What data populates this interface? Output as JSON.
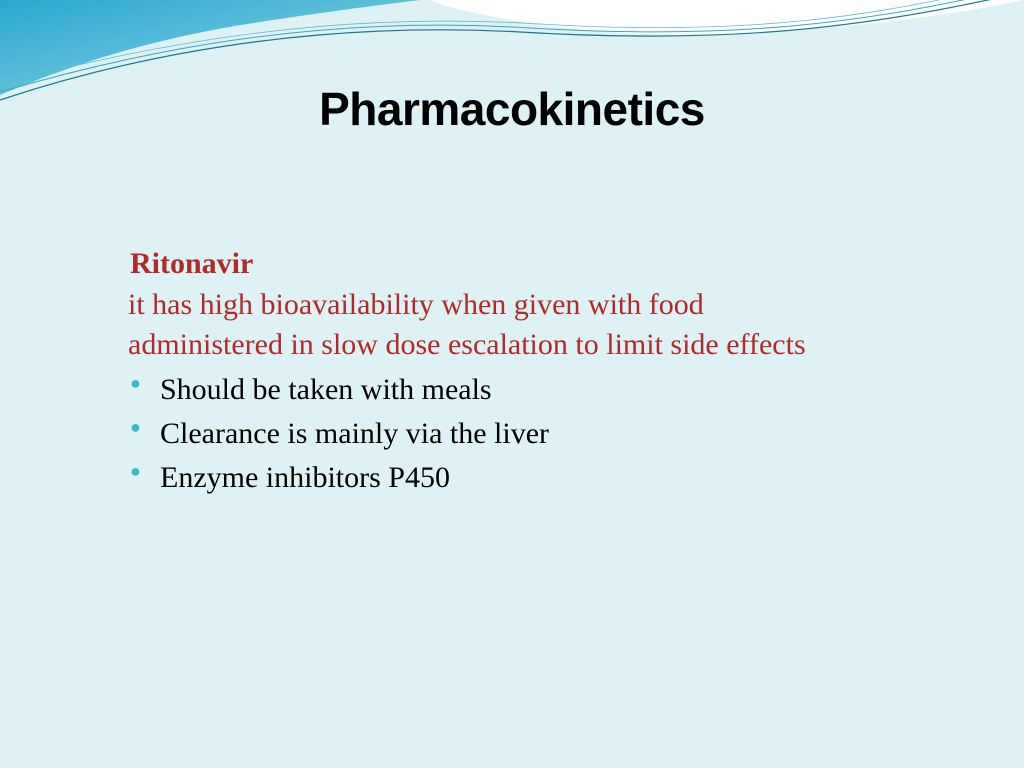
{
  "slide": {
    "background_color": "#def1f4",
    "title": "Pharmacokinetics",
    "title_color": "#000000",
    "title_fontsize": 46,
    "subheading": "Ritonavir",
    "subheading_color": "#b02a2a",
    "red_lines": [
      " it has high bioavailability when given with food",
      " administered in slow dose escalation to limit side effects"
    ],
    "bullet_items": [
      "Should be taken with meals",
      "Clearance is mainly via the liver",
      "Enzyme inhibitors P450"
    ],
    "bullet_color": "#000000",
    "bullet_marker_color": "#3bb9c4",
    "body_fontsize": 30,
    "wave": {
      "gradient_start": "#2aa6cf",
      "gradient_end": "#8fd9e8",
      "stroke_color": "#1a7a8c",
      "white": "#ffffff"
    }
  }
}
